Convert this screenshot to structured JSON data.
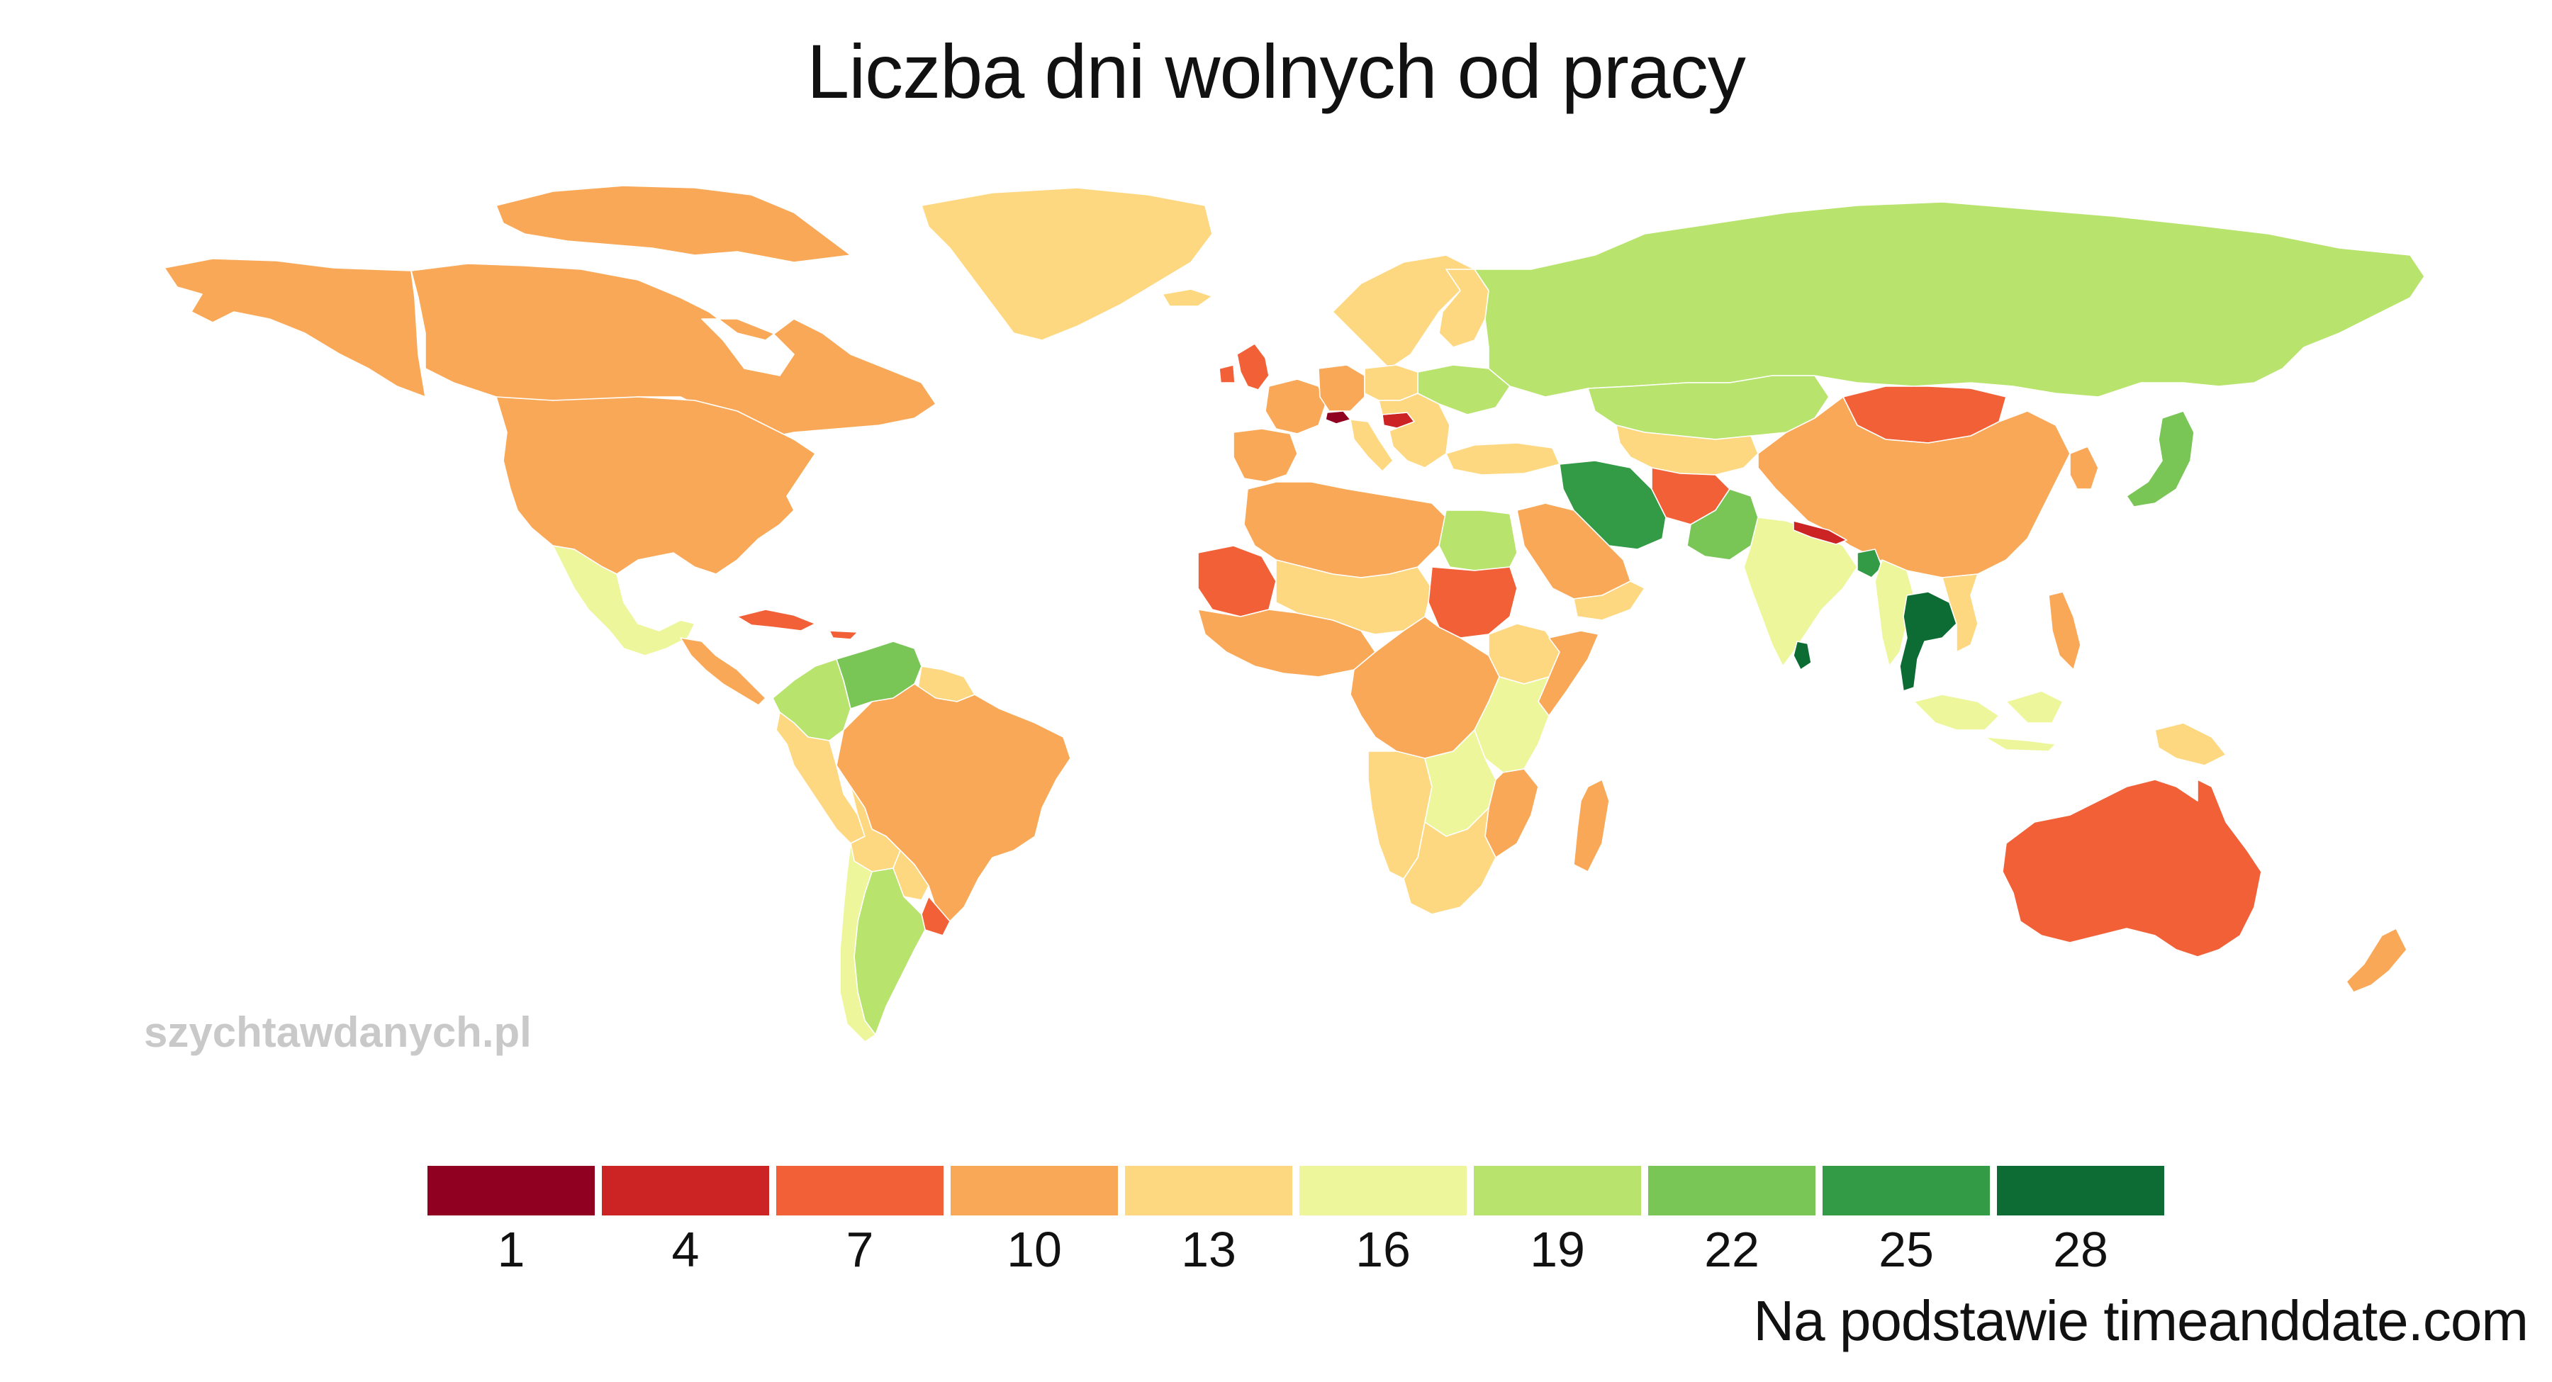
{
  "title": "Liczba dni wolnych od pracy",
  "watermark": "szychtawdanych.pl",
  "source": "Na podstawie timeanddate.com",
  "legend": {
    "bins": [
      {
        "label": "1",
        "color": "#8f0021"
      },
      {
        "label": "4",
        "color": "#cc2424"
      },
      {
        "label": "7",
        "color": "#f26038"
      },
      {
        "label": "10",
        "color": "#f9a857"
      },
      {
        "label": "13",
        "color": "#fdd880"
      },
      {
        "label": "16",
        "color": "#eef69c"
      },
      {
        "label": "19",
        "color": "#b8e36c"
      },
      {
        "label": "22",
        "color": "#79c657"
      },
      {
        "label": "25",
        "color": "#339a45"
      },
      {
        "label": "28",
        "color": "#0d6c34"
      }
    ]
  },
  "regions": [
    {
      "name": "alaska",
      "value": 10
    },
    {
      "name": "canada",
      "value": 10
    },
    {
      "name": "arctic-islands",
      "value": 10
    },
    {
      "name": "greenland",
      "value": 13
    },
    {
      "name": "usa",
      "value": 11
    },
    {
      "name": "mexico",
      "value": 16
    },
    {
      "name": "central-america",
      "value": 10
    },
    {
      "name": "caribbean",
      "value": 8
    },
    {
      "name": "colombia",
      "value": 19
    },
    {
      "name": "venezuela",
      "value": 22
    },
    {
      "name": "guianas",
      "value": 14
    },
    {
      "name": "ecuador-peru",
      "value": 12
    },
    {
      "name": "brazil",
      "value": 10
    },
    {
      "name": "bolivia",
      "value": 12
    },
    {
      "name": "paraguay",
      "value": 12
    },
    {
      "name": "uruguay",
      "value": 8
    },
    {
      "name": "argentina",
      "value": 19
    },
    {
      "name": "chile",
      "value": 16
    },
    {
      "name": "iceland",
      "value": 13
    },
    {
      "name": "scandinavia",
      "value": 14
    },
    {
      "name": "finland",
      "value": 13
    },
    {
      "name": "uk-ireland",
      "value": 8
    },
    {
      "name": "iberia",
      "value": 10
    },
    {
      "name": "france",
      "value": 11
    },
    {
      "name": "germany",
      "value": 10
    },
    {
      "name": "switzerland",
      "value": 1
    },
    {
      "name": "italy",
      "value": 14
    },
    {
      "name": "poland",
      "value": 13
    },
    {
      "name": "balkans",
      "value": 13
    },
    {
      "name": "hungary",
      "value": 4
    },
    {
      "name": "ukraine",
      "value": 19
    },
    {
      "name": "turkey",
      "value": 13
    },
    {
      "name": "russia",
      "value": 19
    },
    {
      "name": "kazakhstan",
      "value": 19
    },
    {
      "name": "central-asia",
      "value": 13
    },
    {
      "name": "mongolia",
      "value": 7
    },
    {
      "name": "china",
      "value": 11
    },
    {
      "name": "korea",
      "value": 10
    },
    {
      "name": "japan",
      "value": 22
    },
    {
      "name": "iran",
      "value": 25
    },
    {
      "name": "afghanistan",
      "value": 7
    },
    {
      "name": "pakistan",
      "value": 22
    },
    {
      "name": "india",
      "value": 16
    },
    {
      "name": "nepal",
      "value": 4
    },
    {
      "name": "bangladesh",
      "value": 25
    },
    {
      "name": "sri-lanka",
      "value": 28
    },
    {
      "name": "myanmar",
      "value": 16
    },
    {
      "name": "thailand",
      "value": 28
    },
    {
      "name": "vietnam",
      "value": 14
    },
    {
      "name": "philippines",
      "value": 9
    },
    {
      "name": "indonesia",
      "value": 16
    },
    {
      "name": "papua",
      "value": 12
    },
    {
      "name": "arabia",
      "value": 10
    },
    {
      "name": "yemen-oman",
      "value": 13
    },
    {
      "name": "north-africa",
      "value": 11
    },
    {
      "name": "egypt",
      "value": 19
    },
    {
      "name": "mauritania",
      "value": 8
    },
    {
      "name": "west-africa",
      "value": 11
    },
    {
      "name": "sahel",
      "value": 13
    },
    {
      "name": "sudan",
      "value": 8
    },
    {
      "name": "ethiopia",
      "value": 13
    },
    {
      "name": "somalia",
      "value": 9
    },
    {
      "name": "central-africa",
      "value": 11
    },
    {
      "name": "east-africa",
      "value": 16
    },
    {
      "name": "angola-namibia",
      "value": 13
    },
    {
      "name": "zambia-botswana",
      "value": 16
    },
    {
      "name": "mozambique",
      "value": 10
    },
    {
      "name": "south-africa",
      "value": 13
    },
    {
      "name": "madagascar",
      "value": 10
    },
    {
      "name": "australia",
      "value": 7
    },
    {
      "name": "new-zealand",
      "value": 10
    }
  ]
}
